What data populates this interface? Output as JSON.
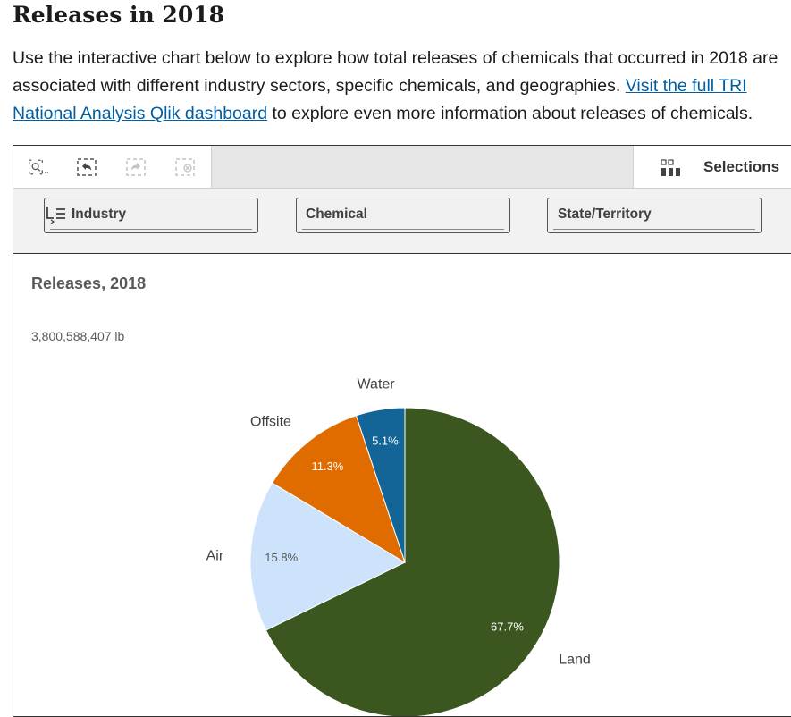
{
  "page": {
    "title": "Releases in 2018",
    "intro_text": "Use the interactive chart below to explore how total releases of chemicals that occurred in 2018 are associated with different industry sectors, specific chemicals, and geographies. ",
    "intro_link": "Visit the full TRI National Analysis Qlik dashboard",
    "intro_tail": " to explore even more information about releases of chemicals."
  },
  "toolbar": {
    "tools": [
      {
        "name": "smart-search-icon",
        "enabled": true
      },
      {
        "name": "step-back-icon",
        "enabled": true
      },
      {
        "name": "step-forward-icon",
        "enabled": false
      },
      {
        "name": "clear-selections-icon",
        "enabled": false
      }
    ],
    "selections_label": "Selections",
    "selections_icon": "selections-grid-icon"
  },
  "filters": [
    {
      "label": "Industry",
      "icon": "filter-list-icon"
    },
    {
      "label": "Chemical"
    },
    {
      "label": "State/Territory"
    }
  ],
  "chart_data": {
    "type": "pie",
    "title": "Releases, 2018",
    "subtitle": "3,800,588,407 lb",
    "slices": [
      {
        "label": "Land",
        "percent": 67.7,
        "percent_label": "67.7%",
        "color": "#3b561f",
        "label_color": "#ffffff"
      },
      {
        "label": "Air",
        "percent": 15.8,
        "percent_label": "15.8%",
        "color": "#cce3fb",
        "label_color": "#595959"
      },
      {
        "label": "Offsite",
        "percent": 11.3,
        "percent_label": "11.3%",
        "color": "#e06c00",
        "label_color": "#ffffff"
      },
      {
        "label": "Water",
        "percent": 5.1,
        "percent_label": "5.1%",
        "color": "#136497",
        "label_color": "#ffffff"
      }
    ]
  }
}
